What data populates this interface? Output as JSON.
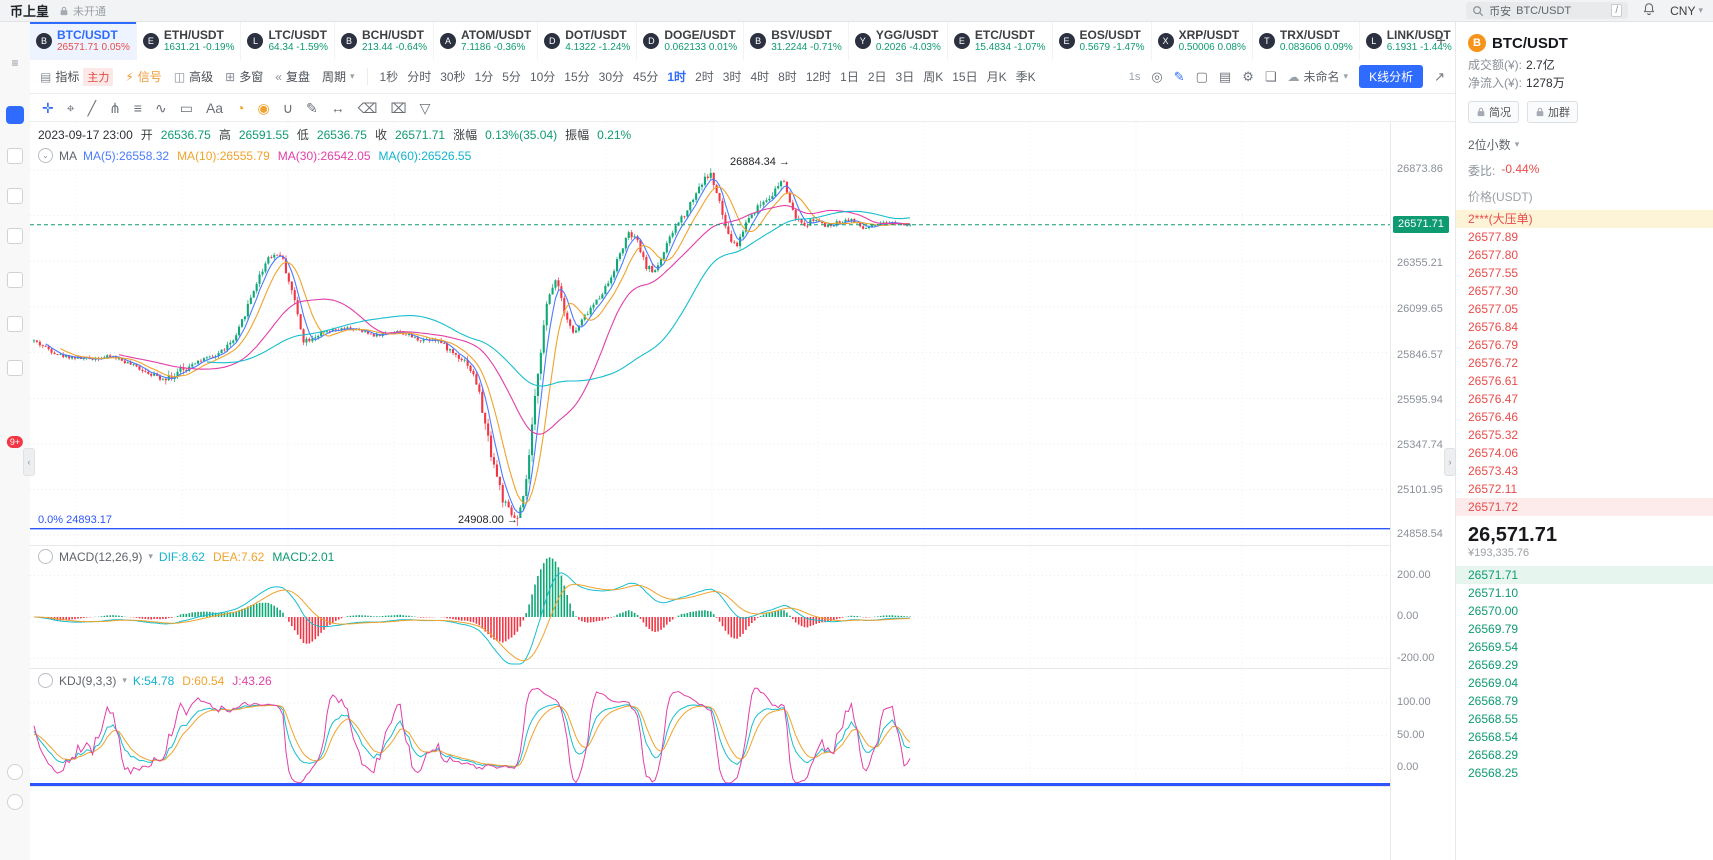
{
  "colors": {
    "up": "#0fa877",
    "down": "#f23645",
    "accent": "#2f6bff",
    "fib": "#2d55fb",
    "price_line": "#0e9b72"
  },
  "app": {
    "logo": "币上皇",
    "status": "未开通"
  },
  "topbar": {
    "search_exchange": "币安",
    "search_value": "BTC/USDT",
    "shortcut": "/",
    "currency": "CNY"
  },
  "sidebar": {
    "badge": "9+"
  },
  "tickers": [
    {
      "symbol": "BTC/USDT",
      "letter": "B",
      "price": "26571.71",
      "change": "0.05%",
      "cls": "active c-red"
    },
    {
      "symbol": "ETH/USDT",
      "letter": "E",
      "price": "1631.21",
      "change": "-0.19%",
      "cls": "c-green"
    },
    {
      "symbol": "LTC/USDT",
      "letter": "L",
      "price": "64.34",
      "change": "-1.59%",
      "cls": "c-green"
    },
    {
      "symbol": "BCH/USDT",
      "letter": "B",
      "price": "213.44",
      "change": "-0.64%",
      "cls": "c-green"
    },
    {
      "symbol": "ATOM/USDT",
      "letter": "A",
      "price": "7.1186",
      "change": "-0.36%",
      "cls": "c-green"
    },
    {
      "symbol": "DOT/USDT",
      "letter": "D",
      "price": "4.1322",
      "change": "-1.24%",
      "cls": "c-green"
    },
    {
      "symbol": "DOGE/USDT",
      "letter": "D",
      "price": "0.062133",
      "change": "0.01%",
      "cls": "c-green"
    },
    {
      "symbol": "BSV/USDT",
      "letter": "B",
      "price": "31.2244",
      "change": "-0.71%",
      "cls": "c-green"
    },
    {
      "symbol": "YGG/USDT",
      "letter": "Y",
      "price": "0.2026",
      "change": "-4.03%",
      "cls": "c-green"
    },
    {
      "symbol": "ETC/USDT",
      "letter": "E",
      "price": "15.4834",
      "change": "-1.07%",
      "cls": "c-green"
    },
    {
      "symbol": "EOS/USDT",
      "letter": "E",
      "price": "0.5679",
      "change": "-1.47%",
      "cls": "c-green"
    },
    {
      "symbol": "XRP/USDT",
      "letter": "X",
      "price": "0.50006",
      "change": "0.08%",
      "cls": "c-green"
    },
    {
      "symbol": "TRX/USDT",
      "letter": "T",
      "price": "0.083606",
      "change": "0.09%",
      "cls": "c-green"
    },
    {
      "symbol": "LINK/USDT",
      "letter": "L",
      "price": "6.1931",
      "change": "-1.44%",
      "cls": "c-green"
    }
  ],
  "toolbar": {
    "indicator": "指标",
    "main_tag": "主力",
    "signal": "信号",
    "advanced": "高级",
    "multi_window": "多窗",
    "replay": "复盘",
    "period": "周期",
    "timeframes": [
      {
        "label": "1秒"
      },
      {
        "label": "分时"
      },
      {
        "label": "30秒"
      },
      {
        "label": "1分"
      },
      {
        "label": "5分"
      },
      {
        "label": "10分"
      },
      {
        "label": "15分"
      },
      {
        "label": "30分"
      },
      {
        "label": "45分"
      },
      {
        "label": "1时",
        "cls": "active"
      },
      {
        "label": "2时"
      },
      {
        "label": "3时"
      },
      {
        "label": "4时"
      },
      {
        "label": "8时"
      },
      {
        "label": "12时"
      },
      {
        "label": "1日"
      },
      {
        "label": "2日"
      },
      {
        "label": "3日"
      },
      {
        "label": "周K"
      },
      {
        "label": "15日"
      },
      {
        "label": "月K"
      },
      {
        "label": "季K"
      }
    ],
    "interval_speed": "1s",
    "template_name": "未命名",
    "kline_button": "K线分析"
  },
  "drawbar": {
    "tools": [
      {
        "name": "crosshair-icon",
        "glyph": "✛",
        "cls": "blue"
      },
      {
        "name": "target-dot-icon",
        "glyph": "⌖"
      },
      {
        "name": "trendline-icon",
        "glyph": "╱"
      },
      {
        "name": "pitchfork-icon",
        "glyph": "⋔"
      },
      {
        "name": "parallel-lines-icon",
        "glyph": "≡"
      },
      {
        "name": "wave-pattern-icon",
        "glyph": "∿"
      },
      {
        "name": "rectangle-tool-icon",
        "glyph": "▭"
      },
      {
        "name": "text-tool-icon",
        "glyph": "Aa"
      },
      {
        "name": "pie-pattern-icon",
        "glyph": "◔",
        "cls": "orange"
      },
      {
        "name": "signal-pattern-icon",
        "glyph": "◉",
        "cls": "orange"
      },
      {
        "name": "magnet-icon",
        "glyph": "∪"
      },
      {
        "name": "pencil-tool-icon",
        "glyph": "✎"
      },
      {
        "name": "measure-icon",
        "glyph": "↔"
      },
      {
        "name": "eraser-icon",
        "glyph": "⌫"
      },
      {
        "name": "trash-icon",
        "glyph": "⌧"
      },
      {
        "name": "filter-icon",
        "glyph": "▽"
      }
    ]
  },
  "chart": {
    "ohlc": {
      "datetime": "2023-09-17 23:00",
      "o_label": "开",
      "o": "26536.75",
      "h_label": "高",
      "h": "26591.55",
      "l_label": "低",
      "l": "26536.75",
      "c_label": "收",
      "c": "26571.71",
      "chg_label": "涨幅",
      "chg": "0.13%(35.04)",
      "amp_label": "振幅",
      "amp": "0.21%"
    },
    "ma": {
      "title": "MA",
      "items": [
        {
          "label": "MA(5):26558.32",
          "cls": "blue"
        },
        {
          "label": "MA(10):26555.79",
          "cls": "orange"
        },
        {
          "label": "MA(30):26542.05",
          "cls": "magenta"
        },
        {
          "label": "MA(60):26526.55",
          "cls": "cyan"
        }
      ]
    },
    "y_axis": [
      "26873.86",
      "26355.21",
      "26099.65",
      "25846.57",
      "25595.94",
      "25347.74",
      "25101.95",
      "24858.54"
    ],
    "price_badge": "26571.71",
    "last_close": 26571.71,
    "high_mark": 26884.34,
    "low_mark": 24908.0,
    "annotations": {
      "peak": "26884.34 →",
      "low": "24908.00 →",
      "fib_label": "0.0% 24893.17",
      "fib_price": 24893.17
    },
    "macd": {
      "title": "MACD(12,26,9)",
      "values": [
        {
          "label": "DIF:8.62",
          "cls": "cyan"
        },
        {
          "label": "DEA:7.62",
          "cls": "orange"
        },
        {
          "label": "MACD:2.01",
          "cls": "green"
        }
      ],
      "y_axis": [
        "200.00",
        "0.00",
        "-200.00"
      ]
    },
    "kdj": {
      "title": "KDJ(9,3,3)",
      "values": [
        {
          "label": "K:54.78",
          "cls": "cyan"
        },
        {
          "label": "D:60.54",
          "cls": "orange"
        },
        {
          "label": "J:43.26",
          "cls": "magenta"
        }
      ],
      "y_axis": [
        "100.00",
        "50.00",
        "0.00"
      ]
    },
    "series_anchors": [
      [
        0.0,
        25930,
        28
      ],
      [
        0.03,
        25850,
        24
      ],
      [
        0.06,
        25830,
        22
      ],
      [
        0.09,
        25845,
        20
      ],
      [
        0.115,
        25790,
        24
      ],
      [
        0.145,
        25725,
        26
      ],
      [
        0.168,
        25750,
        95
      ],
      [
        0.18,
        25810,
        30
      ],
      [
        0.205,
        25840,
        24
      ],
      [
        0.23,
        25940,
        34
      ],
      [
        0.252,
        26230,
        44
      ],
      [
        0.268,
        26400,
        40
      ],
      [
        0.282,
        26410,
        34
      ],
      [
        0.296,
        26180,
        46
      ],
      [
        0.308,
        25930,
        38
      ],
      [
        0.33,
        25975,
        24
      ],
      [
        0.36,
        26000,
        20
      ],
      [
        0.39,
        25960,
        20
      ],
      [
        0.415,
        25985,
        20
      ],
      [
        0.44,
        25935,
        22
      ],
      [
        0.458,
        25945,
        36
      ],
      [
        0.478,
        25865,
        30
      ],
      [
        0.494,
        25815,
        36
      ],
      [
        0.506,
        25690,
        52
      ],
      [
        0.516,
        25440,
        72
      ],
      [
        0.526,
        25230,
        80
      ],
      [
        0.536,
        25040,
        66
      ],
      [
        0.545,
        24965,
        48
      ],
      [
        0.552,
        24945,
        38
      ],
      [
        0.559,
        25060,
        60
      ],
      [
        0.567,
        25360,
        70
      ],
      [
        0.576,
        25810,
        78
      ],
      [
        0.586,
        26140,
        58
      ],
      [
        0.596,
        26290,
        44
      ],
      [
        0.606,
        26090,
        40
      ],
      [
        0.616,
        25965,
        32
      ],
      [
        0.628,
        26060,
        30
      ],
      [
        0.642,
        26150,
        32
      ],
      [
        0.656,
        26255,
        34
      ],
      [
        0.668,
        26400,
        38
      ],
      [
        0.678,
        26520,
        34
      ],
      [
        0.688,
        26490,
        30
      ],
      [
        0.698,
        26345,
        34
      ],
      [
        0.708,
        26310,
        30
      ],
      [
        0.718,
        26410,
        34
      ],
      [
        0.732,
        26560,
        38
      ],
      [
        0.746,
        26660,
        40
      ],
      [
        0.76,
        26790,
        44
      ],
      [
        0.772,
        26858,
        40
      ],
      [
        0.782,
        26700,
        46
      ],
      [
        0.792,
        26510,
        40
      ],
      [
        0.802,
        26450,
        34
      ],
      [
        0.814,
        26600,
        38
      ],
      [
        0.828,
        26680,
        40
      ],
      [
        0.842,
        26740,
        42
      ],
      [
        0.856,
        26815,
        44
      ],
      [
        0.866,
        26640,
        36
      ],
      [
        0.878,
        26560,
        30
      ],
      [
        0.89,
        26605,
        24
      ],
      [
        0.904,
        26560,
        22
      ],
      [
        0.918,
        26585,
        22
      ],
      [
        0.932,
        26605,
        22
      ],
      [
        0.946,
        26550,
        22
      ],
      [
        0.96,
        26565,
        20
      ],
      [
        0.975,
        26585,
        18
      ],
      [
        1.0,
        26571.71,
        16
      ]
    ]
  },
  "panel": {
    "symbol": "BTC/USDT",
    "turnover_label": "成交额(¥):",
    "turnover": "2.7亿",
    "inflow_label": "净流入(¥):",
    "inflow": "1278万",
    "buttons": [
      "简况",
      "加群"
    ],
    "decimals": "2位小数",
    "weibi_label": "委比:",
    "weibi": "-0.44%",
    "price_header": "价格(USDT)",
    "asks": [
      {
        "v": "2***(大压单)",
        "cls": "wall"
      },
      {
        "v": "26577.89"
      },
      {
        "v": "26577.80"
      },
      {
        "v": "26577.55"
      },
      {
        "v": "26577.30"
      },
      {
        "v": "26577.05"
      },
      {
        "v": "26576.84"
      },
      {
        "v": "26576.79"
      },
      {
        "v": "26576.72"
      },
      {
        "v": "26576.61"
      },
      {
        "v": "26576.47"
      },
      {
        "v": "26576.46"
      },
      {
        "v": "26575.32"
      },
      {
        "v": "26574.06"
      },
      {
        "v": "26573.43"
      },
      {
        "v": "26572.11"
      },
      {
        "v": "26571.72",
        "cls": "near"
      }
    ],
    "last_price": "26,571.71",
    "last_cny": "¥193,335.76",
    "bids": [
      {
        "v": "26571.71",
        "cls": "best"
      },
      {
        "v": "26571.10"
      },
      {
        "v": "26570.00"
      },
      {
        "v": "26569.79"
      },
      {
        "v": "26569.54"
      },
      {
        "v": "26569.29"
      },
      {
        "v": "26569.04"
      },
      {
        "v": "26568.79"
      },
      {
        "v": "26568.55"
      },
      {
        "v": "26568.54"
      },
      {
        "v": "26568.29"
      },
      {
        "v": "26568.25"
      }
    ]
  }
}
